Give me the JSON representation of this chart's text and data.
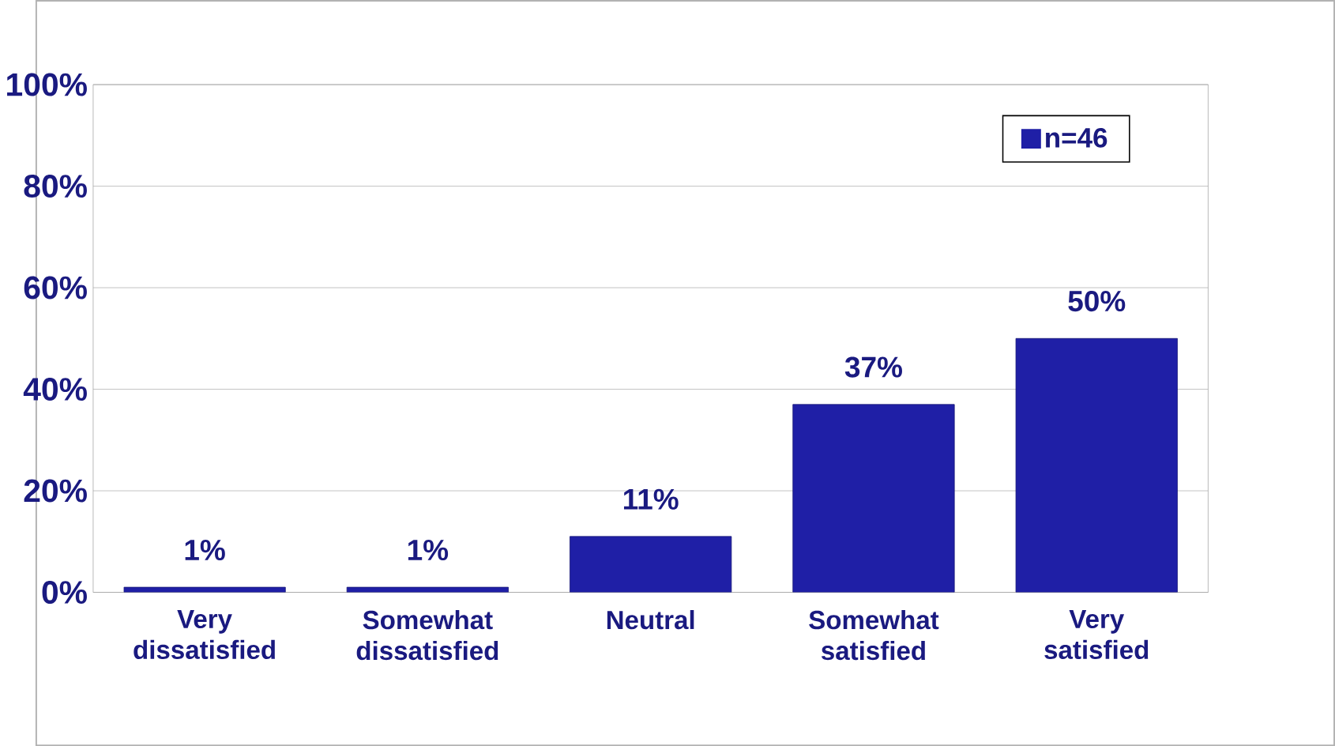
{
  "chart_data": {
    "type": "bar",
    "categories": [
      "Very dissatisfied",
      "Somewhat dissatisfied",
      "Neutral",
      "Somewhat satisfied",
      "Very satisfied"
    ],
    "series": [
      {
        "name": "n=46",
        "color": "#1f1fa6",
        "values": [
          1,
          1,
          11,
          37,
          50
        ],
        "value_labels": [
          "1%",
          "1%",
          "11%",
          "37%",
          "50%"
        ]
      }
    ],
    "ylim": [
      0,
      100
    ],
    "yticks": [
      {
        "value": 0,
        "label": "0%"
      },
      {
        "value": 20,
        "label": "20%"
      },
      {
        "value": 40,
        "label": "40%"
      },
      {
        "value": 60,
        "label": "60%"
      },
      {
        "value": 80,
        "label": "80%"
      },
      {
        "value": 100,
        "label": "100%"
      }
    ],
    "grid": "y",
    "legend": "top right"
  }
}
